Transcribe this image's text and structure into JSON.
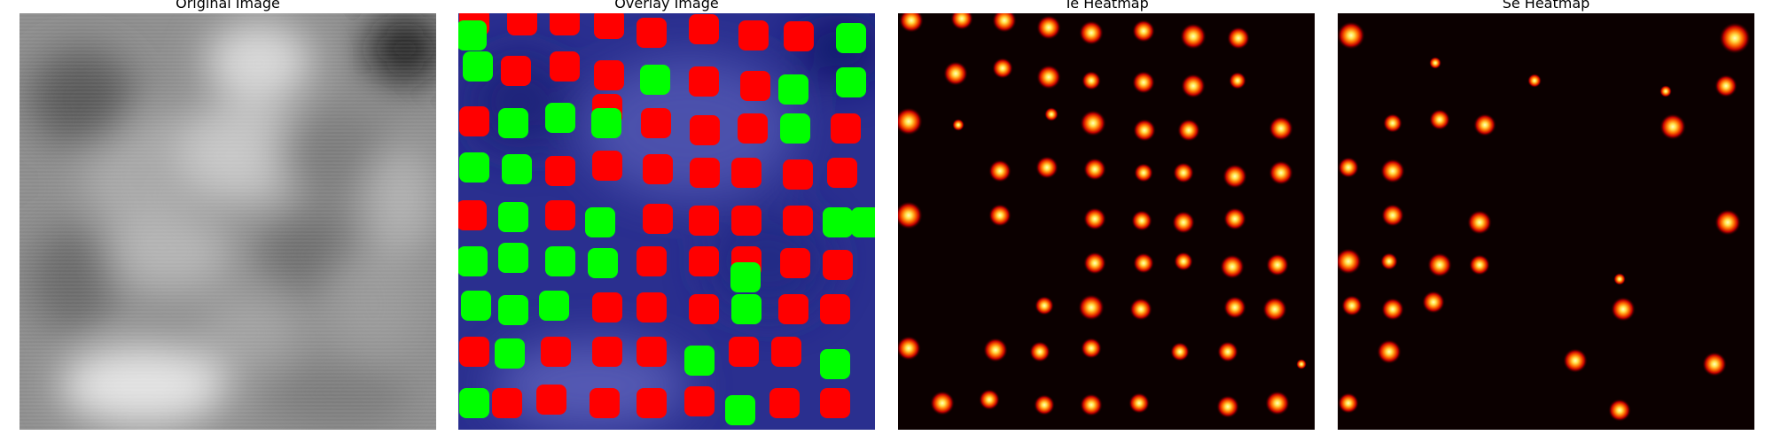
{
  "panels": [
    {
      "title": "Original Image"
    },
    {
      "title": "Overlay Image"
    },
    {
      "title": "Te Heatmap"
    },
    {
      "title": "Se Heatmap"
    }
  ],
  "colors": {
    "te_marker": "#ff0000",
    "se_marker": "#00ff00",
    "overlay_bg": "#2a2f8f",
    "heatmap_bg": "#0b0000"
  }
}
